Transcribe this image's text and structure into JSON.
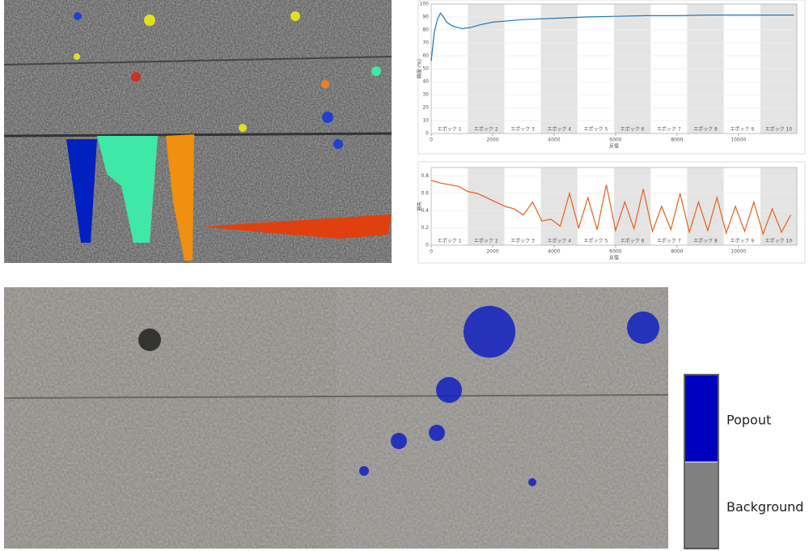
{
  "chart_data": [
    {
      "type": "line",
      "ylabel": "精度 (%)",
      "xlabel": "反復",
      "color": "#1f77b4",
      "xlim": [
        0,
        11900
      ],
      "ylim": [
        0,
        100
      ],
      "xticks": [
        0,
        2000,
        4000,
        6000,
        8000,
        10000
      ],
      "yticks": [
        0,
        10,
        20,
        30,
        40,
        50,
        60,
        70,
        80,
        90,
        100
      ],
      "grid": true,
      "epochs": [
        {
          "label": "エポック 1",
          "start": 0,
          "end": 1190,
          "shaded": false
        },
        {
          "label": "エポック 2",
          "start": 1190,
          "end": 2380,
          "shaded": true
        },
        {
          "label": "エポック 3",
          "start": 2380,
          "end": 3570,
          "shaded": false
        },
        {
          "label": "エポック 4",
          "start": 3570,
          "end": 4760,
          "shaded": true
        },
        {
          "label": "エポック 5",
          "start": 4760,
          "end": 5950,
          "shaded": false
        },
        {
          "label": "エポック 6",
          "start": 5950,
          "end": 7140,
          "shaded": true
        },
        {
          "label": "エポック 7",
          "start": 7140,
          "end": 8330,
          "shaded": false
        },
        {
          "label": "エポック 8",
          "start": 8330,
          "end": 9520,
          "shaded": true
        },
        {
          "label": "エポック 9",
          "start": 9520,
          "end": 10710,
          "shaded": false
        },
        {
          "label": "エポック 10",
          "start": 10710,
          "end": 11900,
          "shaded": true
        }
      ],
      "x": [
        0,
        100,
        200,
        300,
        400,
        500,
        700,
        1000,
        1300,
        1600,
        2000,
        2500,
        3000,
        4000,
        5000,
        6000,
        7000,
        8000,
        9000,
        10000,
        11000,
        11800
      ],
      "values": [
        56,
        78,
        88,
        93,
        90,
        86,
        83,
        81,
        82,
        84,
        86,
        87,
        88,
        89,
        90,
        90.5,
        91,
        91,
        91.5,
        91.5,
        91.5,
        91.5
      ]
    },
    {
      "type": "line",
      "ylabel": "損失",
      "xlabel": "反復",
      "color": "#e8601c",
      "xlim": [
        0,
        11900
      ],
      "ylim": [
        0,
        0.9
      ],
      "xticks": [
        0,
        2000,
        4000,
        6000,
        8000,
        10000
      ],
      "yticks": [
        0,
        0.2,
        0.4,
        0.6,
        0.8
      ],
      "grid": true,
      "epochs": [
        {
          "label": "エポック 1",
          "start": 0,
          "end": 1190,
          "shaded": false
        },
        {
          "label": "エポック 2",
          "start": 1190,
          "end": 2380,
          "shaded": true
        },
        {
          "label": "エポック 3",
          "start": 2380,
          "end": 3570,
          "shaded": false
        },
        {
          "label": "エポック 4",
          "start": 3570,
          "end": 4760,
          "shaded": true
        },
        {
          "label": "エポック 5",
          "start": 4760,
          "end": 5950,
          "shaded": false
        },
        {
          "label": "エポック 6",
          "start": 5950,
          "end": 7140,
          "shaded": true
        },
        {
          "label": "エポック 7",
          "start": 7140,
          "end": 8330,
          "shaded": false
        },
        {
          "label": "エポック 8",
          "start": 8330,
          "end": 9520,
          "shaded": true
        },
        {
          "label": "エポック 9",
          "start": 9520,
          "end": 10710,
          "shaded": false
        },
        {
          "label": "エポック 10",
          "start": 10710,
          "end": 11900,
          "shaded": true
        }
      ],
      "x": [
        0,
        300,
        600,
        900,
        1200,
        1500,
        1800,
        2100,
        2400,
        2700,
        3000,
        3300,
        3600,
        3900,
        4200,
        4500,
        4800,
        5100,
        5400,
        5700,
        6000,
        6300,
        6600,
        6900,
        7200,
        7500,
        7800,
        8100,
        8400,
        8700,
        9000,
        9300,
        9600,
        9900,
        10200,
        10500,
        10800,
        11100,
        11400,
        11700
      ],
      "values": [
        0.75,
        0.72,
        0.7,
        0.68,
        0.62,
        0.6,
        0.55,
        0.5,
        0.45,
        0.42,
        0.35,
        0.5,
        0.28,
        0.3,
        0.22,
        0.6,
        0.2,
        0.55,
        0.18,
        0.7,
        0.17,
        0.5,
        0.19,
        0.65,
        0.16,
        0.45,
        0.18,
        0.6,
        0.15,
        0.5,
        0.17,
        0.55,
        0.14,
        0.45,
        0.16,
        0.5,
        0.13,
        0.42,
        0.15,
        0.35
      ]
    }
  ],
  "legend": {
    "items": [
      "Popout",
      "Background"
    ],
    "colors": [
      "#0000c0",
      "#808080"
    ]
  }
}
